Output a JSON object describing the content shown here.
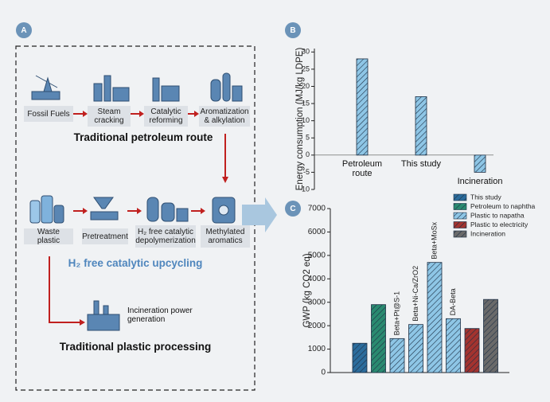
{
  "panel_labels": [
    "A",
    "B",
    "C"
  ],
  "panel_a": {
    "petroleum_steps": [
      "Fossil Fuels",
      "Steam cracking",
      "Catalytic reforming",
      "Aromatization & alkylation"
    ],
    "petroleum_title": "Traditional petroleum route",
    "plastic_steps": [
      "Waste plastic",
      "Pretreatment",
      "H₂ free catalytic depolymerization",
      "Methylated aromatics"
    ],
    "upcycling_title": "H₂ free catalytic upcycling",
    "incineration_step": "Incineration power generation",
    "plastic_title": "Traditional plastic processing"
  },
  "chart_data": [
    {
      "type": "bar",
      "ylabel": "Energy consumption (MJ/kg LDPE)",
      "categories": [
        "Petroleum route",
        "This study",
        "Incineration"
      ],
      "values": [
        28,
        17,
        -5
      ],
      "color": "#8ec6e6",
      "hatch": true,
      "ylim": [
        -10,
        31
      ],
      "yticks": [
        -10,
        -5,
        0,
        5,
        10,
        15,
        20,
        25,
        30
      ]
    },
    {
      "type": "bar",
      "ylabel": "GWP (kg CO2 eq)",
      "categories": [
        null,
        null,
        "Beta+Pt@S-1",
        "Beta+Ni-Ca/ZrO2",
        "Beta+MoSx",
        "DA-Beta",
        null,
        null
      ],
      "series": [
        {
          "name": "This study",
          "color": "#2b6c9c",
          "values": [
            1250,
            null,
            null,
            null,
            null,
            null,
            null,
            null
          ]
        },
        {
          "name": "Petroleum to naphtha",
          "color": "#2a8a70",
          "values": [
            null,
            2900,
            null,
            null,
            null,
            null,
            null,
            null
          ]
        },
        {
          "name": "Plastic to napatha",
          "color": "#8ec6e6",
          "values": [
            null,
            null,
            1450,
            2050,
            4700,
            2300,
            null,
            null
          ]
        },
        {
          "name": "Plastic to electricity",
          "color": "#a3332f",
          "values": [
            null,
            null,
            null,
            null,
            null,
            null,
            1880,
            null
          ]
        },
        {
          "name": "Incineration",
          "color": "#6a6a6a",
          "values": [
            null,
            null,
            null,
            null,
            null,
            null,
            null,
            3120
          ]
        }
      ],
      "hatch": true,
      "legend": "upper right",
      "ylim": [
        0,
        7000
      ],
      "yticks": [
        0,
        1000,
        2000,
        3000,
        4000,
        5000,
        6000,
        7000
      ]
    }
  ]
}
